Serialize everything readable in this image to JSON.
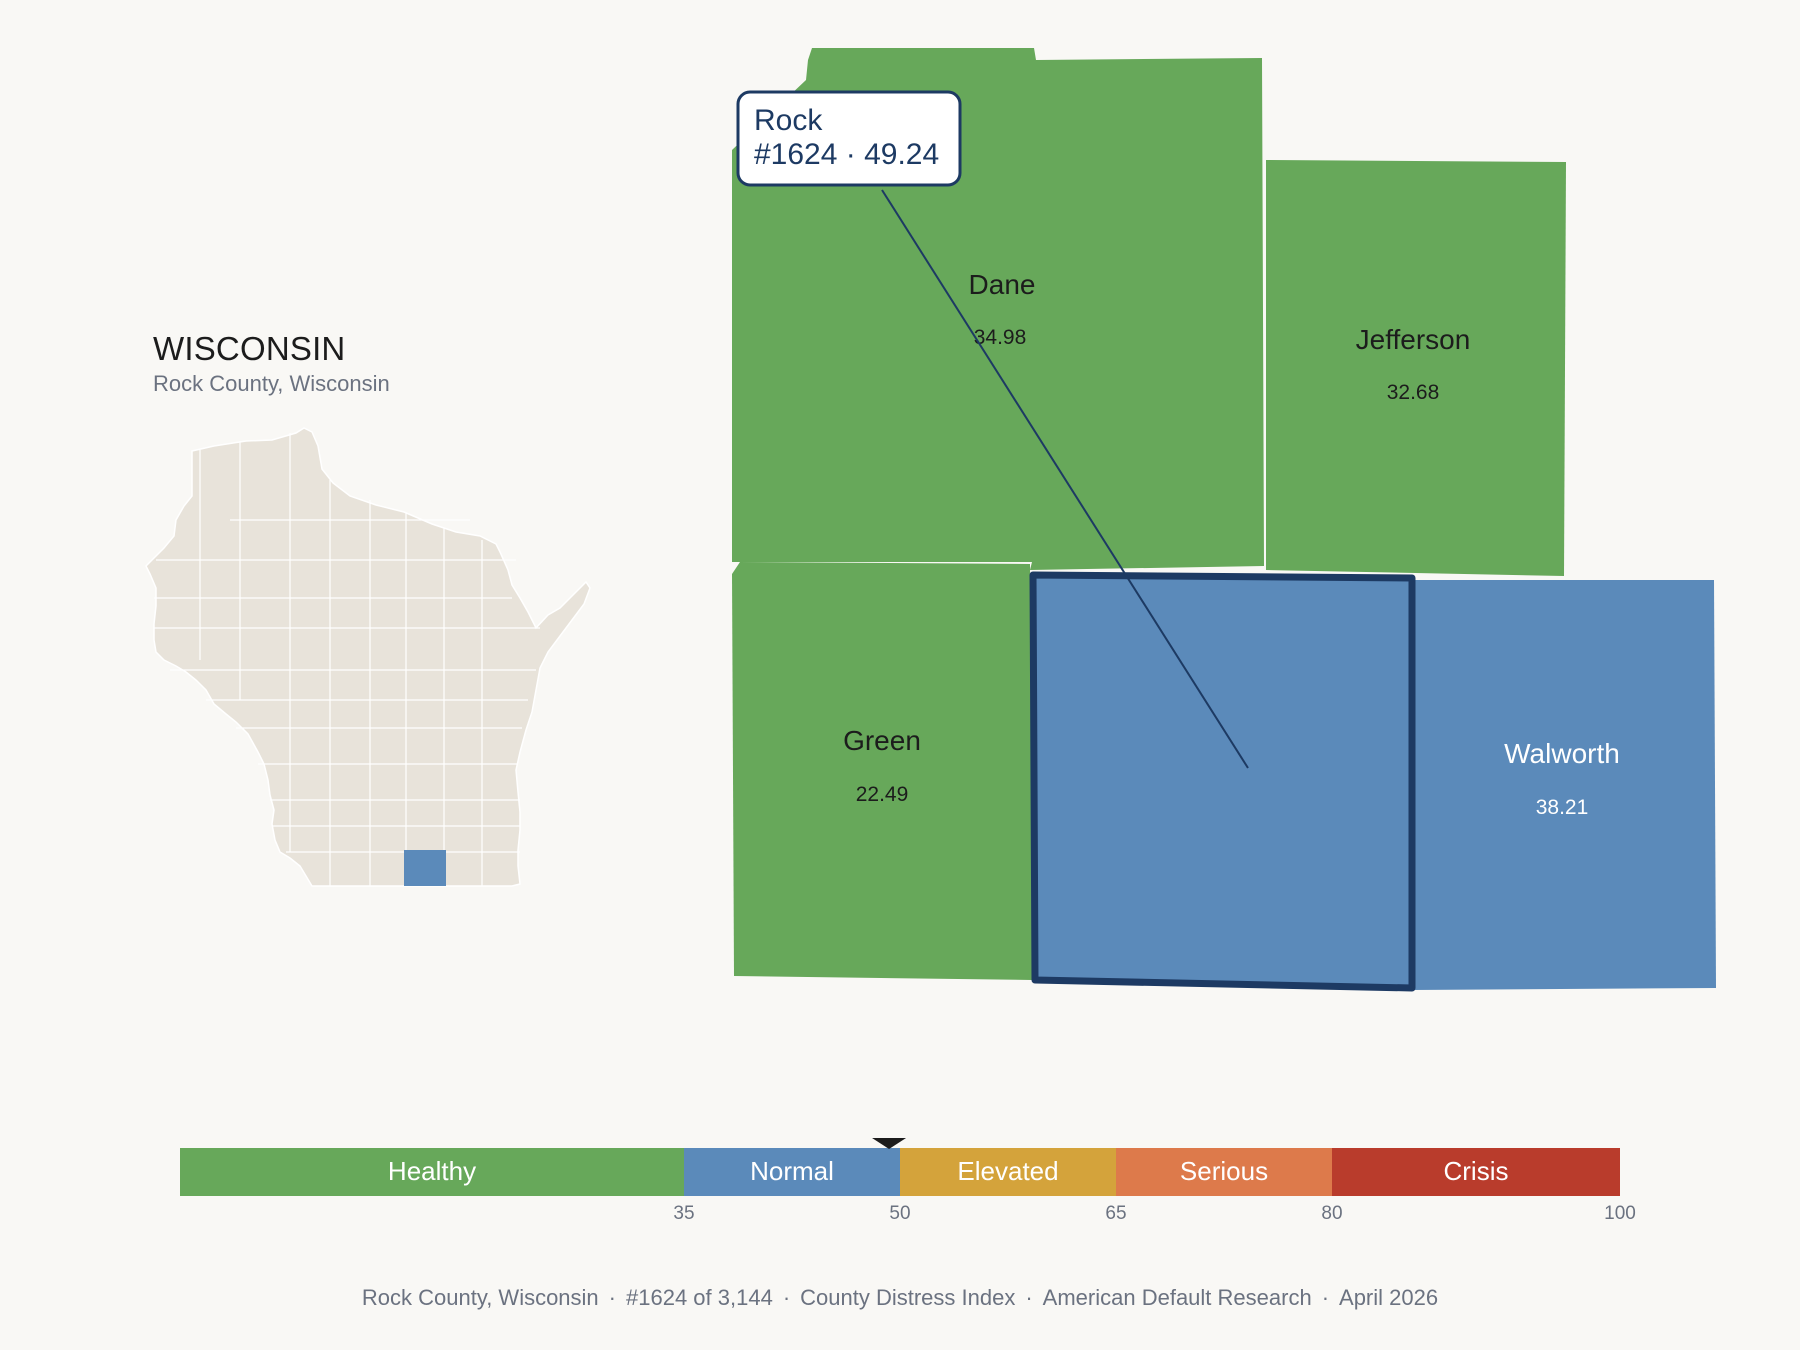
{
  "inset": {
    "title": "WISCONSIN",
    "subtitle": "Rock County, Wisconsin"
  },
  "callout": {
    "name": "Rock",
    "rank_value": "#1624 · 49.24"
  },
  "counties": [
    {
      "id": "dane",
      "name": "Dane",
      "value": "34.98",
      "category": "Healthy"
    },
    {
      "id": "jefferson",
      "name": "Jefferson",
      "value": "32.68",
      "category": "Healthy"
    },
    {
      "id": "green",
      "name": "Green",
      "value": "22.49",
      "category": "Healthy"
    },
    {
      "id": "rock",
      "name": "Rock",
      "value": "49.24",
      "category": "Normal",
      "selected": true
    },
    {
      "id": "walworth",
      "name": "Walworth",
      "value": "38.21",
      "category": "Normal"
    }
  ],
  "scale": {
    "marker_value": 49.24,
    "bands": [
      {
        "label": "Healthy",
        "from": 0,
        "to": 35,
        "color": "#67a85a"
      },
      {
        "label": "Normal",
        "from": 35,
        "to": 50,
        "color": "#5b8aba"
      },
      {
        "label": "Elevated",
        "from": 50,
        "to": 65,
        "color": "#d4a33b"
      },
      {
        "label": "Serious",
        "from": 65,
        "to": 80,
        "color": "#dd7a4b"
      },
      {
        "label": "Crisis",
        "from": 80,
        "to": 100,
        "color": "#b93c2c"
      }
    ],
    "ticks": [
      "35",
      "50",
      "65",
      "80",
      "100"
    ]
  },
  "colors": {
    "healthy": "#67a85a",
    "normal": "#5b8aba",
    "selected_outline": "#1d3a63",
    "inset_fill": "#e8e3da",
    "background": "#f9f8f5"
  },
  "footer": {
    "county": "Rock County, Wisconsin",
    "rank": "#1624 of 3,144",
    "index": "County Distress Index",
    "source": "American Default Research",
    "date": "April 2026"
  }
}
